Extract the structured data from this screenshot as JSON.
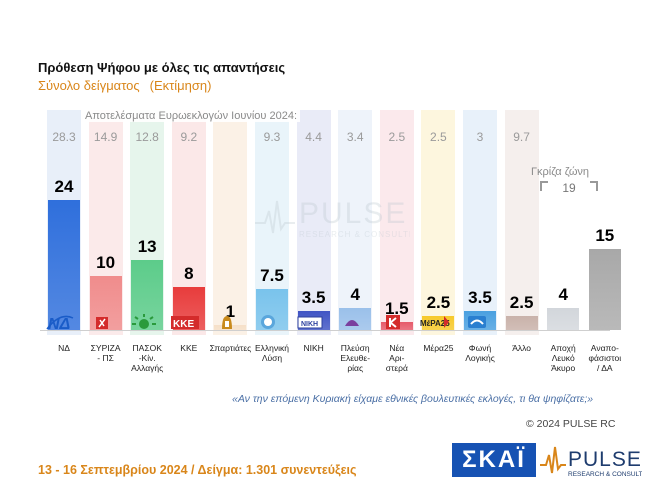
{
  "header": {
    "title": "Πρόθεση Ψήφου με όλες τις απαντήσεις",
    "subtitle_1": "Σύνολο δείγματος",
    "subtitle_2": "(Εκτίμηση)"
  },
  "colors": {
    "accent": "#d9861a",
    "question": "#4a6fa5",
    "skai": "#1652b3"
  },
  "chart_data": {
    "type": "bar",
    "title": "Πρόθεση Ψήφου με όλες τις απαντήσεις",
    "subtitle": "Σύνολο δείγματος (Εκτίμηση)",
    "categories": [
      "ΝΔ",
      "ΣΥΡΙΖΑ - ΠΣ",
      "ΠΑΣΟΚ -Κίν. Αλλαγής",
      "ΚΚΕ",
      "Σπαρτιάτες",
      "Ελληνική Λύση",
      "ΝΙΚΗ",
      "Πλεύση Ελευθε-ρίας",
      "Νέα Αρι-στερά",
      "Μέρα25",
      "Φωνή Λογικής",
      "Άλλο",
      "Αποχή Λευκό Άκυρο",
      "Αναπο-φάσιστοι / ΔΑ"
    ],
    "category_lines": [
      [
        "ΝΔ"
      ],
      [
        "ΣΥΡΙΖΑ",
        "- ΠΣ"
      ],
      [
        "ΠΑΣΟΚ",
        "-Κίν.",
        "Αλλαγής"
      ],
      [
        "ΚΚΕ"
      ],
      [
        "Σπαρτιάτες"
      ],
      [
        "Ελληνική",
        "Λύση"
      ],
      [
        "ΝΙΚΗ"
      ],
      [
        "Πλεύση",
        "Ελευθε-",
        "ρίας"
      ],
      [
        "Νέα",
        "Αρι-",
        "στερά"
      ],
      [
        "Μέρα25"
      ],
      [
        "Φωνή",
        "Λογικής"
      ],
      [
        "Άλλο"
      ],
      [
        "Αποχή",
        "Λευκό",
        "Άκυρο"
      ],
      [
        "Αναπο-",
        "φάσιστοι",
        "/ ΔΑ"
      ]
    ],
    "series": [
      {
        "name": "",
        "values": [
          24,
          10,
          13,
          8,
          1,
          7.5,
          3.5,
          4,
          1.5,
          2.5,
          3.5,
          2.5,
          4,
          15
        ]
      },
      {
        "name": "Αποτελέσματα Ευρωεκλογών Ιουνίου 2024:",
        "values": [
          28.3,
          14.9,
          12.8,
          9.2,
          null,
          9.3,
          4.4,
          3.4,
          2.5,
          2.5,
          3,
          9.7,
          null,
          null
        ]
      }
    ],
    "value_labels": [
      "24",
      "10",
      "13",
      "8",
      "1",
      "7.5",
      "3.5",
      "4",
      "1.5",
      "2.5",
      "3.5",
      "2.5",
      "4",
      "15"
    ],
    "euro_labels": [
      "28.3",
      "14.9",
      "12.8",
      "9.2",
      "",
      "9.3",
      "4.4",
      "3.4",
      "2.5",
      "2.5",
      "3",
      "9.7",
      "",
      ""
    ],
    "bar_colors": [
      "#2f6fdc",
      "#f08c8c",
      "#5ccc8a",
      "#e83c3c",
      "#f6e0c8",
      "#79c3ec",
      "#3f54c4",
      "#9ac0ea",
      "#e65a6a",
      "#f7c92a",
      "#4aa0e0",
      "#c9b2aa",
      "#d2d6db",
      "#a8a8a8"
    ],
    "column_colors": [
      "#e8eff9",
      "#fbeaea",
      "#e6f5ec",
      "#fbe8e8",
      "#fbf1e6",
      "#e9f4fa",
      "#e9ebf7",
      "#eef3fa",
      "#fbe9ec",
      "#fdf6de",
      "#e8f1fa",
      "#f5efed",
      "",
      ""
    ],
    "ylim": [
      0,
      30
    ],
    "grey_zone": {
      "label": "Γκρίζα ζώνη",
      "value": "19"
    }
  },
  "question": "«Αν την επόμενη Κυριακή είχαμε εθνικές βουλευτικές εκλογές, τι θα ψηφίζατε;»",
  "copyright": "© 2024 PULSE RC",
  "footer": {
    "date_sample": "13 - 16 Σεπτεμβρίου 2024  /  Δείγμα:  1.301 συνεντεύξεις"
  },
  "logos": {
    "skai": "ΣΚΑΪ",
    "pulse": "PULSE",
    "pulse_tagline": "RESEARCH & CONSULTING"
  }
}
